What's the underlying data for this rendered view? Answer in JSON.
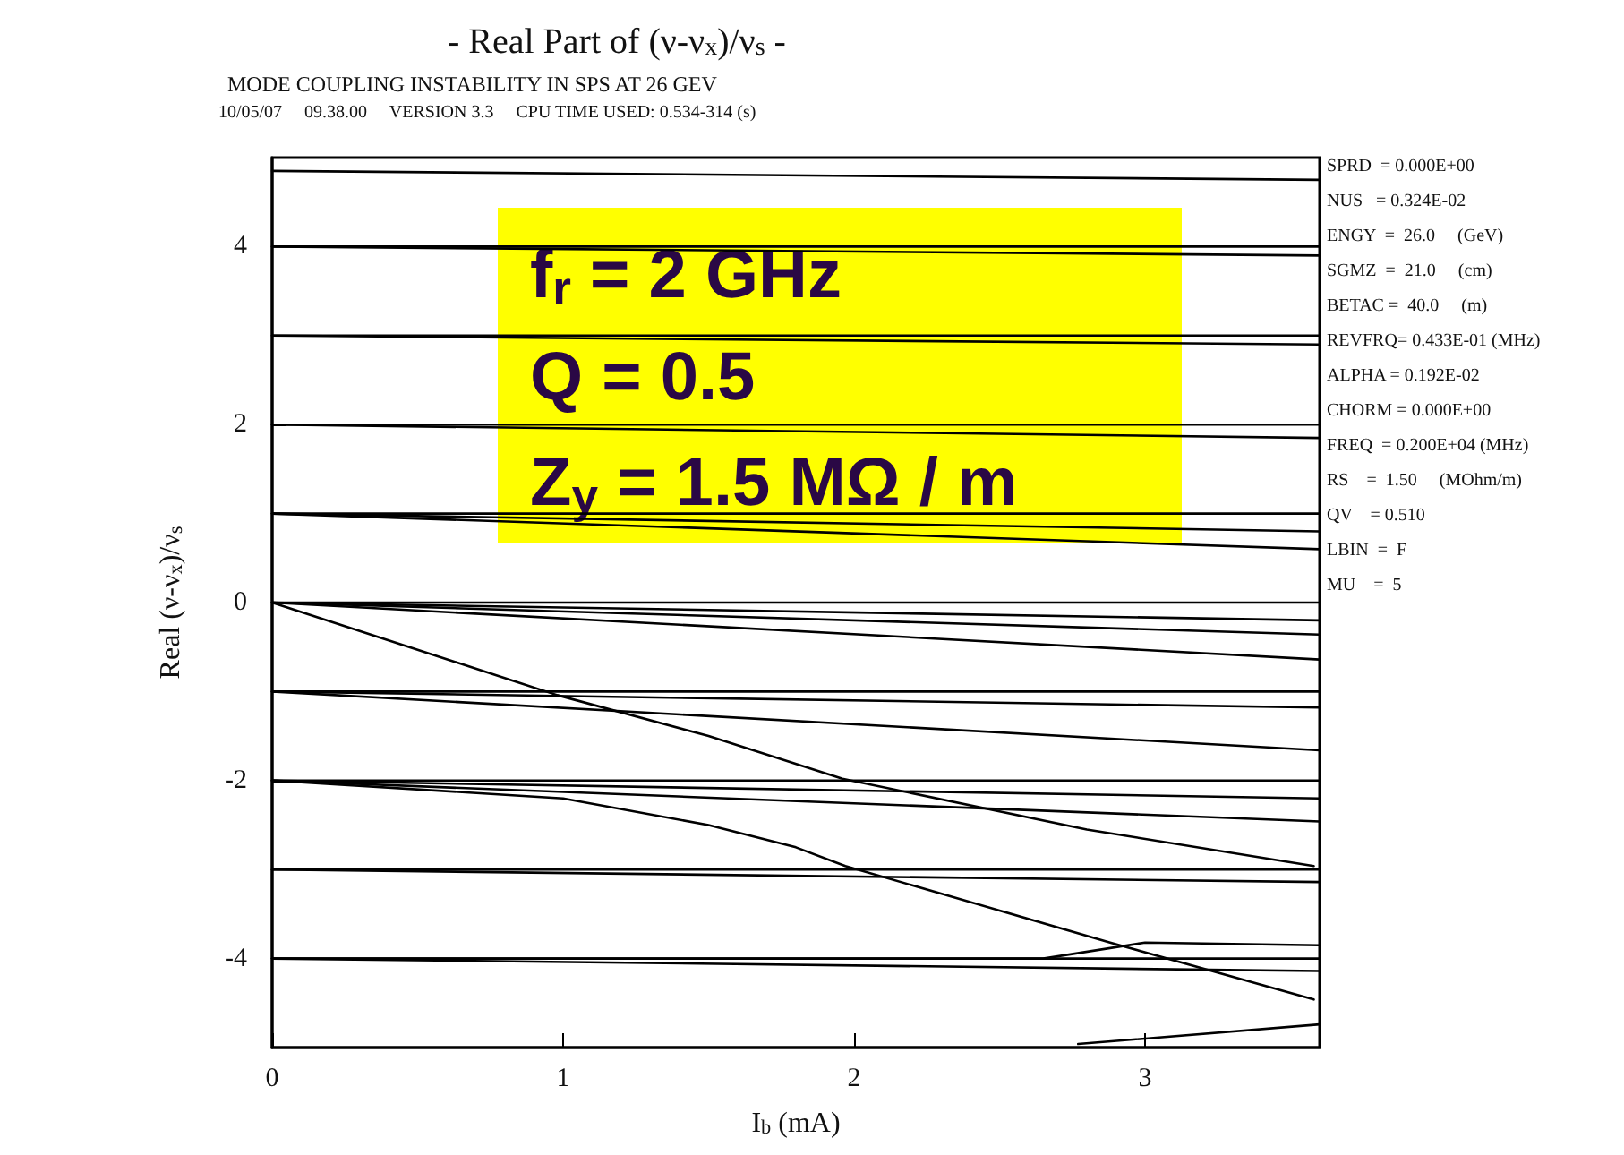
{
  "chart_data": {
    "type": "line",
    "title": "- Real Part of (ν-ν$_{x}$)/ν$_{s}$ -",
    "subtitle": "MODE COUPLING INSTABILITY IN SPS AT 26 GEV",
    "xlabel": "I$_{b}$ (mA)",
    "ylabel": "Real (ν-ν$_{x}$)/ν$_{s}$",
    "annotations": [
      "10/05/07     09.38.00     VERSION 3.3     CPU TIME USED: 0.534-314 (s)",
      "f$_{r}$ = 2 GHz",
      "Q = 0.5",
      "Z$_{y}$ = 1.5 MΩ / m",
      "SPRD  = 0.000E+00",
      "NUS   = 0.324E-02",
      "ENGY  =  26.0     (GeV)",
      "SGMZ  =  21.0     (cm)",
      "BETAC =  40.0     (m)",
      "REVFRQ= 0.433E-01 (MHz)",
      "ALPHA = 0.192E-02",
      "CHORM = 0.000E+00",
      "FREQ  = 0.200E+04 (MHz)",
      "RS    =  1.50     (MOhm/m)",
      "QV    = 0.510",
      "LBIN  =  F",
      "MU    =  5"
    ],
    "xlim": [
      0,
      3.6
    ],
    "ylim": [
      -5,
      5
    ],
    "xticks": [
      0,
      1,
      2,
      3
    ],
    "yticks": [
      -4,
      -2,
      0,
      2,
      4
    ],
    "grid": false,
    "marker": "none",
    "line_style": "solid",
    "series": [
      {
        "color": "#000000",
        "x": [
          0,
          3.6
        ],
        "values": [
          4.85,
          4.75
        ]
      },
      {
        "color": "#000000",
        "x": [
          0,
          3.6
        ],
        "values": [
          4,
          4
        ]
      },
      {
        "color": "#000000",
        "x": [
          0,
          3.6
        ],
        "values": [
          4,
          3.9
        ]
      },
      {
        "color": "#000000",
        "x": [
          0,
          3.6
        ],
        "values": [
          3,
          3
        ]
      },
      {
        "color": "#000000",
        "x": [
          0,
          3.6
        ],
        "values": [
          3,
          2.9
        ]
      },
      {
        "color": "#000000",
        "x": [
          0,
          3.6
        ],
        "values": [
          2,
          2
        ]
      },
      {
        "color": "#000000",
        "x": [
          0,
          3.6
        ],
        "values": [
          2,
          1.85
        ]
      },
      {
        "color": "#000000",
        "x": [
          0,
          3.6
        ],
        "values": [
          1,
          1
        ]
      },
      {
        "color": "#000000",
        "x": [
          0,
          3.6
        ],
        "values": [
          1,
          0.8
        ]
      },
      {
        "color": "#000000",
        "x": [
          0,
          3.6
        ],
        "values": [
          1,
          0.6
        ]
      },
      {
        "color": "#000000",
        "x": [
          0,
          3.6
        ],
        "values": [
          0,
          0
        ]
      },
      {
        "color": "#000000",
        "x": [
          0,
          3.6
        ],
        "values": [
          0,
          -0.2
        ]
      },
      {
        "color": "#000000",
        "x": [
          0,
          3.6
        ],
        "values": [
          0,
          -0.36
        ]
      },
      {
        "color": "#000000",
        "x": [
          0,
          3.6
        ],
        "values": [
          0,
          -0.64
        ]
      },
      {
        "color": "#000000",
        "x": [
          0,
          0.98,
          1.5,
          1.96,
          2.8,
          3.58
        ],
        "values": [
          0,
          -1.04,
          -1.5,
          -1.98,
          -2.55,
          -2.96
        ]
      },
      {
        "color": "#000000",
        "x": [
          0,
          3.6
        ],
        "values": [
          -1,
          -1
        ]
      },
      {
        "color": "#000000",
        "x": [
          0,
          3.6
        ],
        "values": [
          -1,
          -1.18
        ]
      },
      {
        "color": "#000000",
        "x": [
          0,
          3.6
        ],
        "values": [
          -1,
          -1.66
        ]
      },
      {
        "color": "#000000",
        "x": [
          0,
          3.6
        ],
        "values": [
          -2,
          -2
        ]
      },
      {
        "color": "#000000",
        "x": [
          0,
          3.6
        ],
        "values": [
          -2,
          -2.2
        ]
      },
      {
        "color": "#000000",
        "x": [
          0,
          3.6
        ],
        "values": [
          -2,
          -2.46
        ]
      },
      {
        "color": "#000000",
        "x": [
          0,
          1,
          1.5,
          1.8,
          1.97,
          2.5,
          2.88,
          3.58
        ],
        "values": [
          -2,
          -2.2,
          -2.5,
          -2.75,
          -2.96,
          -3.46,
          -3.82,
          -4.46
        ]
      },
      {
        "color": "#000000",
        "x": [
          0,
          3.6
        ],
        "values": [
          -3,
          -3
        ]
      },
      {
        "color": "#000000",
        "x": [
          0,
          3.6
        ],
        "values": [
          -3,
          -3.14
        ]
      },
      {
        "color": "#000000",
        "x": [
          0,
          3.6
        ],
        "values": [
          -4,
          -4
        ]
      },
      {
        "color": "#000000",
        "x": [
          0,
          3.6
        ],
        "values": [
          -4,
          -4.14
        ]
      },
      {
        "color": "#000000",
        "x": [
          0,
          2.65,
          3.0,
          3.6
        ],
        "values": [
          -4,
          -4,
          -3.82,
          -3.85
        ]
      },
      {
        "color": "#000000",
        "x": [
          2.77,
          3.6
        ],
        "values": [
          -4.96,
          -4.74
        ]
      }
    ]
  }
}
